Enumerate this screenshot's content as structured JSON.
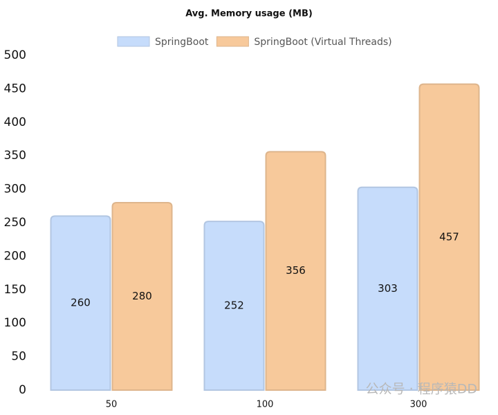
{
  "chart_data": {
    "type": "bar",
    "title": "Avg. Memory usage (MB)",
    "categories": [
      "50",
      "100",
      "300"
    ],
    "series": [
      {
        "name": "SpringBoot",
        "color": "#c6dcfb",
        "values": [
          260,
          252,
          303
        ]
      },
      {
        "name": "SpringBoot (Virtual Threads)",
        "color": "#f7c99b",
        "values": [
          280,
          356,
          457
        ]
      }
    ],
    "ylim": [
      0,
      500
    ],
    "yticks": [
      0,
      50,
      100,
      150,
      200,
      250,
      300,
      350,
      400,
      450,
      500
    ],
    "grid": false,
    "legend": "top",
    "watermark": "公众号 · 程序猿DD"
  }
}
